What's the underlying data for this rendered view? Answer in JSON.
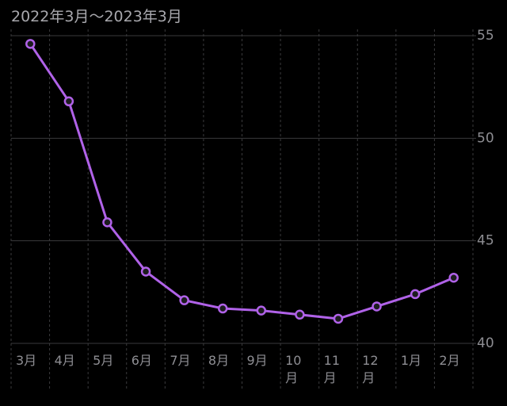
{
  "chart_data": {
    "type": "line",
    "title": "2022年3月〜2023年3月",
    "categories": [
      "3月",
      "4月",
      "5月",
      "6月",
      "7月",
      "8月",
      "9月",
      "10月",
      "11月",
      "12月",
      "1月",
      "2月"
    ],
    "series": [
      {
        "name": null,
        "color": "#b062e8",
        "values": [
          54.6,
          51.8,
          45.9,
          43.5,
          42.1,
          41.7,
          41.6,
          41.4,
          41.2,
          41.8,
          42.4,
          43.2
        ]
      }
    ],
    "ylim": [
      40,
      55
    ],
    "yticks": [
      40,
      45,
      50,
      55
    ],
    "grid": true
  }
}
